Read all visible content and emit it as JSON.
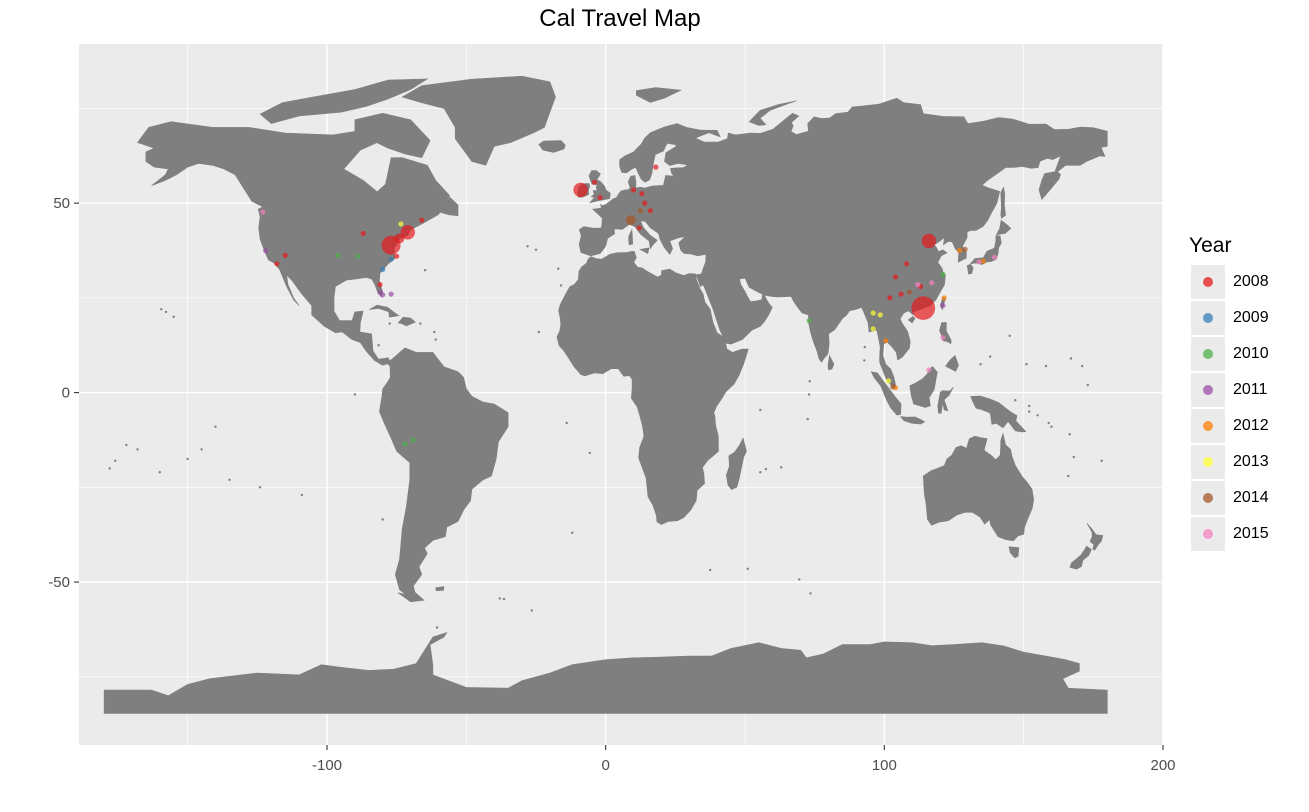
{
  "title": "Cal Travel Map",
  "legend": {
    "title": "Year",
    "items": [
      {
        "label": "2008",
        "color": "#E41A1C"
      },
      {
        "label": "2009",
        "color": "#377EB8"
      },
      {
        "label": "2010",
        "color": "#4DAF4A"
      },
      {
        "label": "2011",
        "color": "#984EA3"
      },
      {
        "label": "2012",
        "color": "#FF7F00"
      },
      {
        "label": "2013",
        "color": "#FFFF33"
      },
      {
        "label": "2014",
        "color": "#A65628"
      },
      {
        "label": "2015",
        "color": "#F781BF"
      }
    ]
  },
  "chart_data": {
    "type": "scatter",
    "title": "Cal Travel Map",
    "xlabel": "",
    "ylabel": "",
    "xlim": [
      -189,
      200
    ],
    "ylim": [
      -93,
      92
    ],
    "x_ticks": [
      -100,
      0,
      100,
      200
    ],
    "y_ticks": [
      -50,
      0,
      50
    ],
    "grid": true,
    "legend_position": "right",
    "land_color": "#7f7f7f",
    "panel_color": "#ebebeb",
    "series": [
      {
        "name": "2008",
        "color": "#E41A1C",
        "points": [
          {
            "x": -77,
            "y": 38.9,
            "size": 4
          },
          {
            "x": -74,
            "y": 40.7,
            "size": 2
          },
          {
            "x": -71,
            "y": 42.3,
            "size": 3
          },
          {
            "x": -75,
            "y": 36,
            "size": 1
          },
          {
            "x": -118,
            "y": 34,
            "size": 1
          },
          {
            "x": -115,
            "y": 36.2,
            "size": 1
          },
          {
            "x": -87,
            "y": 42,
            "size": 1
          },
          {
            "x": -81,
            "y": 28.5,
            "size": 1
          },
          {
            "x": -66,
            "y": 45.5,
            "size": 1
          },
          {
            "x": -9,
            "y": 53.5,
            "size": 3
          },
          {
            "x": -2,
            "y": 51.5,
            "size": 1
          },
          {
            "x": -4,
            "y": 55.5,
            "size": 1
          },
          {
            "x": 10,
            "y": 53.5,
            "size": 1
          },
          {
            "x": 13,
            "y": 52.5,
            "size": 1
          },
          {
            "x": 18,
            "y": 59.5,
            "size": 1
          },
          {
            "x": 14,
            "y": 50,
            "size": 1
          },
          {
            "x": 12,
            "y": 43.5,
            "size": 1
          },
          {
            "x": 16,
            "y": 48,
            "size": 1
          },
          {
            "x": 116,
            "y": 40,
            "size": 3
          },
          {
            "x": 114,
            "y": 22.3,
            "size": 5
          },
          {
            "x": 104,
            "y": 30.5,
            "size": 1
          },
          {
            "x": 108,
            "y": 34,
            "size": 1
          },
          {
            "x": 113,
            "y": 28,
            "size": 1
          },
          {
            "x": 106,
            "y": 26,
            "size": 1
          },
          {
            "x": 102,
            "y": 25,
            "size": 1
          }
        ]
      },
      {
        "name": "2009",
        "color": "#377EB8",
        "points": [
          {
            "x": -77,
            "y": 35.2,
            "size": 1
          },
          {
            "x": -80,
            "y": 32.5,
            "size": 1
          }
        ]
      },
      {
        "name": "2010",
        "color": "#4DAF4A",
        "points": [
          {
            "x": -96,
            "y": 36.2,
            "size": 1
          },
          {
            "x": -89,
            "y": 36,
            "size": 1
          },
          {
            "x": -72,
            "y": -13.5,
            "size": 1
          },
          {
            "x": -69,
            "y": -12.5,
            "size": 1
          },
          {
            "x": 73,
            "y": 19,
            "size": 1
          },
          {
            "x": 121,
            "y": 31.2,
            "size": 1
          }
        ]
      },
      {
        "name": "2011",
        "color": "#984EA3",
        "points": [
          {
            "x": -122,
            "y": 37.5,
            "size": 1
          },
          {
            "x": -81,
            "y": 26.5,
            "size": 1
          },
          {
            "x": -80,
            "y": 25.8,
            "size": 1
          },
          {
            "x": -77,
            "y": 26,
            "size": 1
          },
          {
            "x": 121,
            "y": 23,
            "size": 1
          }
        ]
      },
      {
        "name": "2012",
        "color": "#FF7F00",
        "points": [
          {
            "x": 100.5,
            "y": 13.7,
            "size": 1
          },
          {
            "x": 104,
            "y": 1.3,
            "size": 1
          },
          {
            "x": 121.5,
            "y": 25,
            "size": 1
          },
          {
            "x": 135.5,
            "y": 34.7,
            "size": 1
          },
          {
            "x": 127,
            "y": 37.5,
            "size": 1
          }
        ]
      },
      {
        "name": "2013",
        "color": "#FFFF33",
        "points": [
          {
            "x": -73.5,
            "y": 44.5,
            "size": 1
          },
          {
            "x": 96,
            "y": 21,
            "size": 1
          },
          {
            "x": 98.5,
            "y": 20.5,
            "size": 1
          },
          {
            "x": 101.5,
            "y": 3.1,
            "size": 1
          },
          {
            "x": 96,
            "y": 16.8,
            "size": 1
          }
        ]
      },
      {
        "name": "2014",
        "color": "#A65628",
        "points": [
          {
            "x": 9,
            "y": 45.5,
            "size": 2
          },
          {
            "x": 12.5,
            "y": 48,
            "size": 1
          },
          {
            "x": 109,
            "y": 26.5,
            "size": 1
          },
          {
            "x": 103,
            "y": 1.5,
            "size": 1
          },
          {
            "x": 129,
            "y": 37.8,
            "size": 1
          }
        ]
      },
      {
        "name": "2015",
        "color": "#F781BF",
        "points": [
          {
            "x": -123,
            "y": 47.6,
            "size": 1
          },
          {
            "x": 112,
            "y": 28.5,
            "size": 1
          },
          {
            "x": 117,
            "y": 29,
            "size": 1
          },
          {
            "x": 121,
            "y": 14.5,
            "size": 1
          },
          {
            "x": 116,
            "y": 6,
            "size": 1
          },
          {
            "x": 139.5,
            "y": 35.7,
            "size": 1
          },
          {
            "x": 134,
            "y": 34.5,
            "size": 1
          }
        ]
      }
    ]
  }
}
